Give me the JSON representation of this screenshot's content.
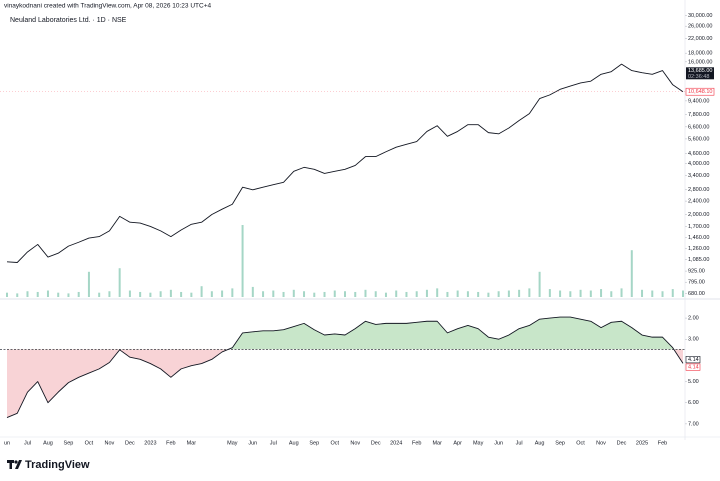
{
  "caption": "vinaykodnani created with TradingView.com, Apr 08, 2026 10:23 UTC+4",
  "brand": "TradingView",
  "chart_data": [
    {
      "type": "line",
      "title": "Neuland Laboratories Ltd. · 1D · NSE",
      "log_scale": true,
      "grid": false,
      "categories": [
        "un",
        null,
        "Jul",
        null,
        "Aug",
        null,
        "Sep",
        null,
        "Oct",
        null,
        "Nov",
        null,
        "Dec",
        null,
        "2023",
        null,
        "Feb",
        null,
        "Mar",
        null,
        null,
        null,
        "May",
        null,
        "Jun",
        null,
        "Jul",
        null,
        "Aug",
        null,
        "Sep",
        null,
        "Oct",
        null,
        "Nov",
        null,
        "Dec",
        null,
        "2024",
        null,
        "Feb",
        null,
        "Mar",
        null,
        "Apr",
        null,
        "May",
        null,
        "Jun",
        null,
        "Jul",
        null,
        "Aug",
        null,
        "Sep",
        null,
        "Oct",
        null,
        "Nov",
        null,
        "Dec",
        null,
        "2025",
        null,
        "Feb",
        null,
        null
      ],
      "price": {
        "color": "#131722",
        "values": [
          1050,
          1040,
          1200,
          1330,
          1120,
          1180,
          1300,
          1370,
          1450,
          1480,
          1600,
          1950,
          1800,
          1780,
          1700,
          1600,
          1480,
          1620,
          1750,
          1800,
          2000,
          2150,
          2300,
          2900,
          2800,
          2900,
          3000,
          3100,
          3600,
          3800,
          3700,
          3500,
          3600,
          3700,
          3900,
          4400,
          4400,
          4700,
          5000,
          5200,
          5400,
          6200,
          6700,
          5800,
          6200,
          6800,
          6800,
          6100,
          6000,
          6500,
          7200,
          7900,
          9700,
          10200,
          11000,
          11500,
          12000,
          12300,
          13500,
          14000,
          15500,
          14200,
          13800,
          13500,
          14200,
          11700,
          10648.1
        ]
      },
      "volume": {
        "color": "#a5d6c6",
        "axis": "y2",
        "values": [
          6,
          5,
          8,
          7,
          9,
          6,
          5,
          7,
          35,
          6,
          8,
          40,
          9,
          7,
          6,
          8,
          10,
          7,
          6,
          15,
          8,
          9,
          12,
          100,
          14,
          8,
          9,
          7,
          10,
          8,
          6,
          7,
          9,
          8,
          7,
          10,
          8,
          6,
          9,
          7,
          8,
          10,
          12,
          7,
          9,
          8,
          7,
          6,
          8,
          9,
          10,
          12,
          35,
          11,
          9,
          8,
          10,
          9,
          11,
          8,
          12,
          65,
          10,
          9,
          8,
          11,
          9
        ]
      },
      "ylim": [
        650,
        34700
      ],
      "y2lim": [
        0,
        100
      ],
      "yticks": [
        {
          "value": 30000,
          "label": "30,000.00"
        },
        {
          "value": 26000,
          "label": "26,000.00"
        },
        {
          "value": 22000,
          "label": "22,000.00"
        },
        {
          "value": 18000,
          "label": "18,000.00"
        },
        {
          "value": 16000,
          "label": "16,000.00"
        },
        {
          "value": 9400,
          "label": "9,400.00"
        },
        {
          "value": 7800,
          "label": "7,800.00"
        },
        {
          "value": 6600,
          "label": "6,600.00"
        },
        {
          "value": 5600,
          "label": "5,600.00"
        },
        {
          "value": 4600,
          "label": "4,600.00"
        },
        {
          "value": 4000,
          "label": "4,000.00"
        },
        {
          "value": 3400,
          "label": "3,400.00"
        },
        {
          "value": 2800,
          "label": "2,800.00"
        },
        {
          "value": 2400,
          "label": "2,400.00"
        },
        {
          "value": 2000,
          "label": "2,000.00"
        },
        {
          "value": 1700,
          "label": "1,700.00"
        },
        {
          "value": 1460,
          "label": "1,460.00"
        },
        {
          "value": 1260,
          "label": "1,260.00"
        },
        {
          "value": 1085,
          "label": "1,085.00"
        },
        {
          "value": 925,
          "label": "925.00"
        },
        {
          "value": 795,
          "label": "795.00"
        },
        {
          "value": 680,
          "label": "680.00"
        }
      ],
      "marker_price": {
        "value": 13685,
        "label": "13,685.00"
      },
      "countdown": "02:36:48",
      "last_price": {
        "value": 10648.1,
        "label": "10,648.10",
        "color": "#f23645"
      }
    },
    {
      "type": "baseline",
      "ylim": [
        7.62,
        1.24
      ],
      "baseline": 3.48,
      "line_color": "#131722",
      "above_color": "#c8e6c9",
      "below_color": "#f8d3d6",
      "values": [
        6.7,
        6.5,
        5.5,
        5.0,
        6.0,
        5.5,
        5.05,
        4.8,
        4.6,
        4.4,
        4.1,
        3.5,
        3.85,
        3.95,
        4.15,
        4.4,
        4.8,
        4.4,
        4.25,
        4.15,
        3.95,
        3.6,
        3.4,
        2.7,
        2.65,
        2.6,
        2.6,
        2.55,
        2.4,
        2.25,
        2.55,
        2.8,
        2.75,
        2.8,
        2.5,
        2.15,
        2.3,
        2.25,
        2.25,
        2.25,
        2.2,
        2.15,
        2.15,
        2.7,
        2.5,
        2.35,
        2.5,
        2.9,
        3.0,
        2.8,
        2.5,
        2.35,
        2.05,
        2.0,
        1.95,
        1.95,
        2.05,
        2.15,
        2.45,
        2.2,
        2.15,
        2.45,
        2.8,
        2.9,
        2.9,
        3.4,
        4.14
      ],
      "yticks": [
        {
          "value": 2,
          "label": "2.00"
        },
        {
          "value": 3,
          "label": "3.00"
        },
        {
          "value": 5,
          "label": "5.00"
        },
        {
          "value": 6,
          "label": "6.00"
        },
        {
          "value": 7,
          "label": "7.00"
        }
      ],
      "last_label": "4.14"
    }
  ]
}
